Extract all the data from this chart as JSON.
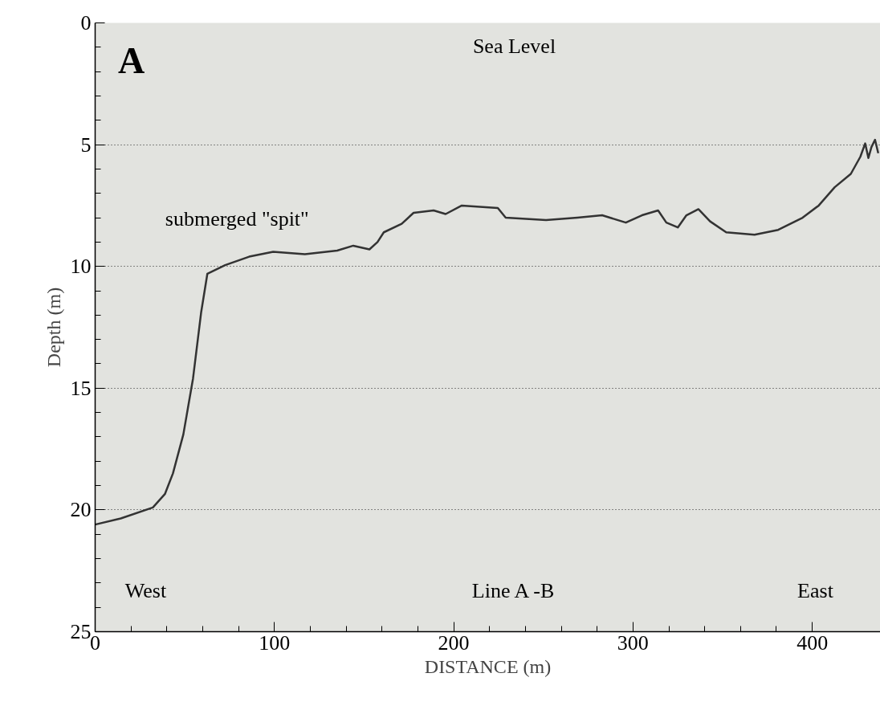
{
  "chart_data": {
    "type": "line",
    "xlabel": "DISTANCE (m)",
    "ylabel": "Depth (m)",
    "xlim": [
      0,
      438
    ],
    "ylim": [
      25,
      0
    ],
    "xticks": [
      0,
      100,
      200,
      300,
      400
    ],
    "yticks": [
      0,
      5,
      10,
      15,
      20,
      25
    ],
    "grid": "y",
    "marker": "none",
    "line_style": "solid",
    "series": [
      {
        "color": "#333333",
        "x": [
          0,
          14.3,
          32.2,
          38.9,
          43.4,
          49.2,
          54.6,
          59.1,
          62.6,
          72.5,
          85.9,
          99.3,
          117,
          135,
          144,
          153,
          157.5,
          161,
          171,
          177.6,
          188.8,
          195.5,
          204.5,
          224.6,
          229,
          251.5,
          269,
          282.8,
          296,
          305,
          314,
          318.6,
          325,
          329.8,
          336.5,
          343,
          352,
          367.8,
          381,
          394.6,
          403.6,
          412.5,
          421.5,
          426.8,
          429.5,
          431.3,
          433,
          435,
          436.8
        ],
        "values": [
          20.6,
          20.35,
          19.9,
          19.35,
          18.5,
          16.9,
          14.6,
          11.9,
          10.3,
          9.95,
          9.6,
          9.4,
          9.5,
          9.35,
          9.15,
          9.3,
          9.0,
          8.6,
          8.25,
          7.8,
          7.7,
          7.85,
          7.5,
          7.6,
          8.0,
          8.1,
          8.0,
          7.9,
          8.2,
          7.9,
          7.7,
          8.2,
          8.4,
          7.9,
          7.65,
          8.15,
          8.6,
          8.7,
          8.5,
          8.0,
          7.5,
          6.75,
          6.2,
          5.5,
          4.95,
          5.55,
          5.1,
          4.8,
          5.35
        ]
      }
    ],
    "annotations": [
      "A",
      "Sea Level",
      "submerged  \"spit\"",
      "West",
      "Line A -B",
      "East"
    ]
  }
}
